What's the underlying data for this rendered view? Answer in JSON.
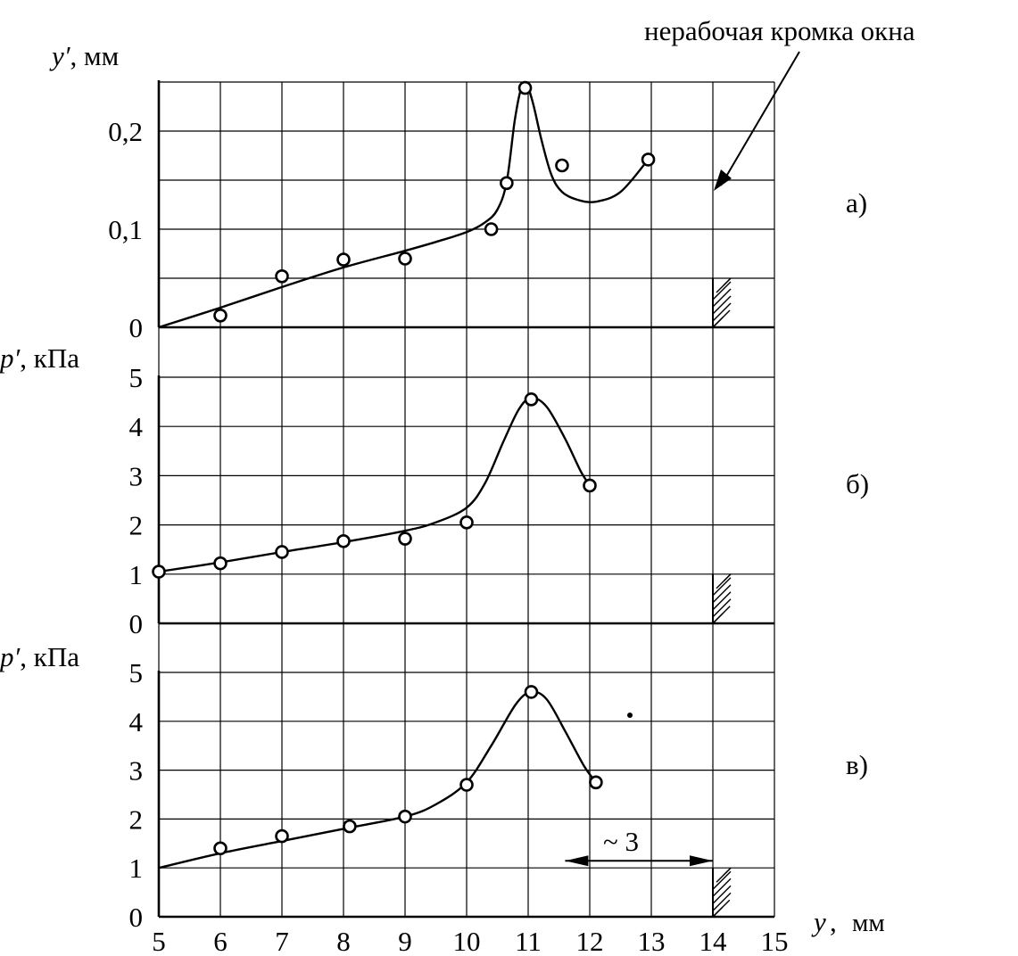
{
  "chart_data": {
    "type": "scatter",
    "shared_x": {
      "label_var": "y",
      "label_unit": "мм",
      "min": 5,
      "max": 15,
      "ticks": [
        "5",
        "6",
        "7",
        "8",
        "9",
        "10",
        "11",
        "12",
        "13",
        "14",
        "15"
      ]
    },
    "annotation": "нерабочая кромка окна",
    "edge_x": 14,
    "dimension": {
      "text": "~ 3",
      "from": 11.6,
      "to": 14
    },
    "panels": [
      {
        "tag": "а)",
        "ylabel_var": "y′",
        "ylabel_unit": "мм",
        "ylim": [
          0,
          0.25
        ],
        "grid_step": 0.05,
        "tick_labels": [
          {
            "v": 0,
            "t": "0"
          },
          {
            "v": 0.1,
            "t": "0,1"
          },
          {
            "v": 0.2,
            "t": "0,2"
          }
        ],
        "points": [
          [
            6,
            0.012
          ],
          [
            7,
            0.052
          ],
          [
            8,
            0.069
          ],
          [
            9,
            0.07
          ],
          [
            10.4,
            0.1
          ],
          [
            10.65,
            0.147
          ],
          [
            10.95,
            0.244
          ],
          [
            11.55,
            0.165
          ],
          [
            12.95,
            0.171
          ]
        ],
        "curve": [
          [
            5,
            0.0
          ],
          [
            6,
            0.02
          ],
          [
            7,
            0.041
          ],
          [
            8,
            0.061
          ],
          [
            9,
            0.078
          ],
          [
            9.5,
            0.087
          ],
          [
            10,
            0.097
          ],
          [
            10.3,
            0.107
          ],
          [
            10.5,
            0.12
          ],
          [
            10.65,
            0.148
          ],
          [
            10.78,
            0.21
          ],
          [
            10.88,
            0.242
          ],
          [
            10.98,
            0.246
          ],
          [
            11.08,
            0.228
          ],
          [
            11.22,
            0.19
          ],
          [
            11.38,
            0.155
          ],
          [
            11.55,
            0.138
          ],
          [
            11.8,
            0.13
          ],
          [
            12.1,
            0.128
          ],
          [
            12.5,
            0.138
          ],
          [
            12.95,
            0.171
          ]
        ]
      },
      {
        "tag": "б)",
        "ylabel_var": "p′",
        "ylabel_unit": "кПа",
        "ylim": [
          0,
          5
        ],
        "grid_step": 1,
        "tick_labels": [
          {
            "v": 0,
            "t": "0"
          },
          {
            "v": 1,
            "t": "1"
          },
          {
            "v": 2,
            "t": "2"
          },
          {
            "v": 3,
            "t": "3"
          },
          {
            "v": 4,
            "t": "4"
          },
          {
            "v": 5,
            "t": "5"
          }
        ],
        "points": [
          [
            5,
            1.05
          ],
          [
            6,
            1.22
          ],
          [
            7,
            1.45
          ],
          [
            8,
            1.67
          ],
          [
            9,
            1.72
          ],
          [
            10,
            2.05
          ],
          [
            11.05,
            4.55
          ],
          [
            12,
            2.8
          ]
        ],
        "curve": [
          [
            5,
            1.05
          ],
          [
            6,
            1.24
          ],
          [
            7,
            1.45
          ],
          [
            8,
            1.65
          ],
          [
            9,
            1.88
          ],
          [
            9.5,
            2.05
          ],
          [
            10,
            2.35
          ],
          [
            10.3,
            2.85
          ],
          [
            10.6,
            3.7
          ],
          [
            10.85,
            4.35
          ],
          [
            11.05,
            4.58
          ],
          [
            11.3,
            4.4
          ],
          [
            11.6,
            3.75
          ],
          [
            11.85,
            3.1
          ],
          [
            12,
            2.8
          ]
        ]
      },
      {
        "tag": "в)",
        "ylabel_var": "p′",
        "ylabel_unit": "кПа",
        "ylim": [
          0,
          5
        ],
        "grid_step": 1,
        "tick_labels": [
          {
            "v": 0,
            "t": "0"
          },
          {
            "v": 1,
            "t": "1"
          },
          {
            "v": 2,
            "t": "2"
          },
          {
            "v": 3,
            "t": "3"
          },
          {
            "v": 4,
            "t": "4"
          },
          {
            "v": 5,
            "t": "5"
          }
        ],
        "points": [
          [
            6,
            1.4
          ],
          [
            7,
            1.65
          ],
          [
            8.1,
            1.85
          ],
          [
            9,
            2.05
          ],
          [
            10,
            2.7
          ],
          [
            11.05,
            4.6
          ],
          [
            12.1,
            2.75
          ]
        ],
        "curve": [
          [
            5,
            1.0
          ],
          [
            6,
            1.3
          ],
          [
            7,
            1.55
          ],
          [
            8,
            1.8
          ],
          [
            9,
            2.05
          ],
          [
            9.5,
            2.3
          ],
          [
            10,
            2.75
          ],
          [
            10.4,
            3.5
          ],
          [
            10.8,
            4.35
          ],
          [
            11.05,
            4.6
          ],
          [
            11.3,
            4.45
          ],
          [
            11.6,
            3.8
          ],
          [
            11.9,
            3.1
          ],
          [
            12.1,
            2.75
          ]
        ]
      }
    ]
  }
}
